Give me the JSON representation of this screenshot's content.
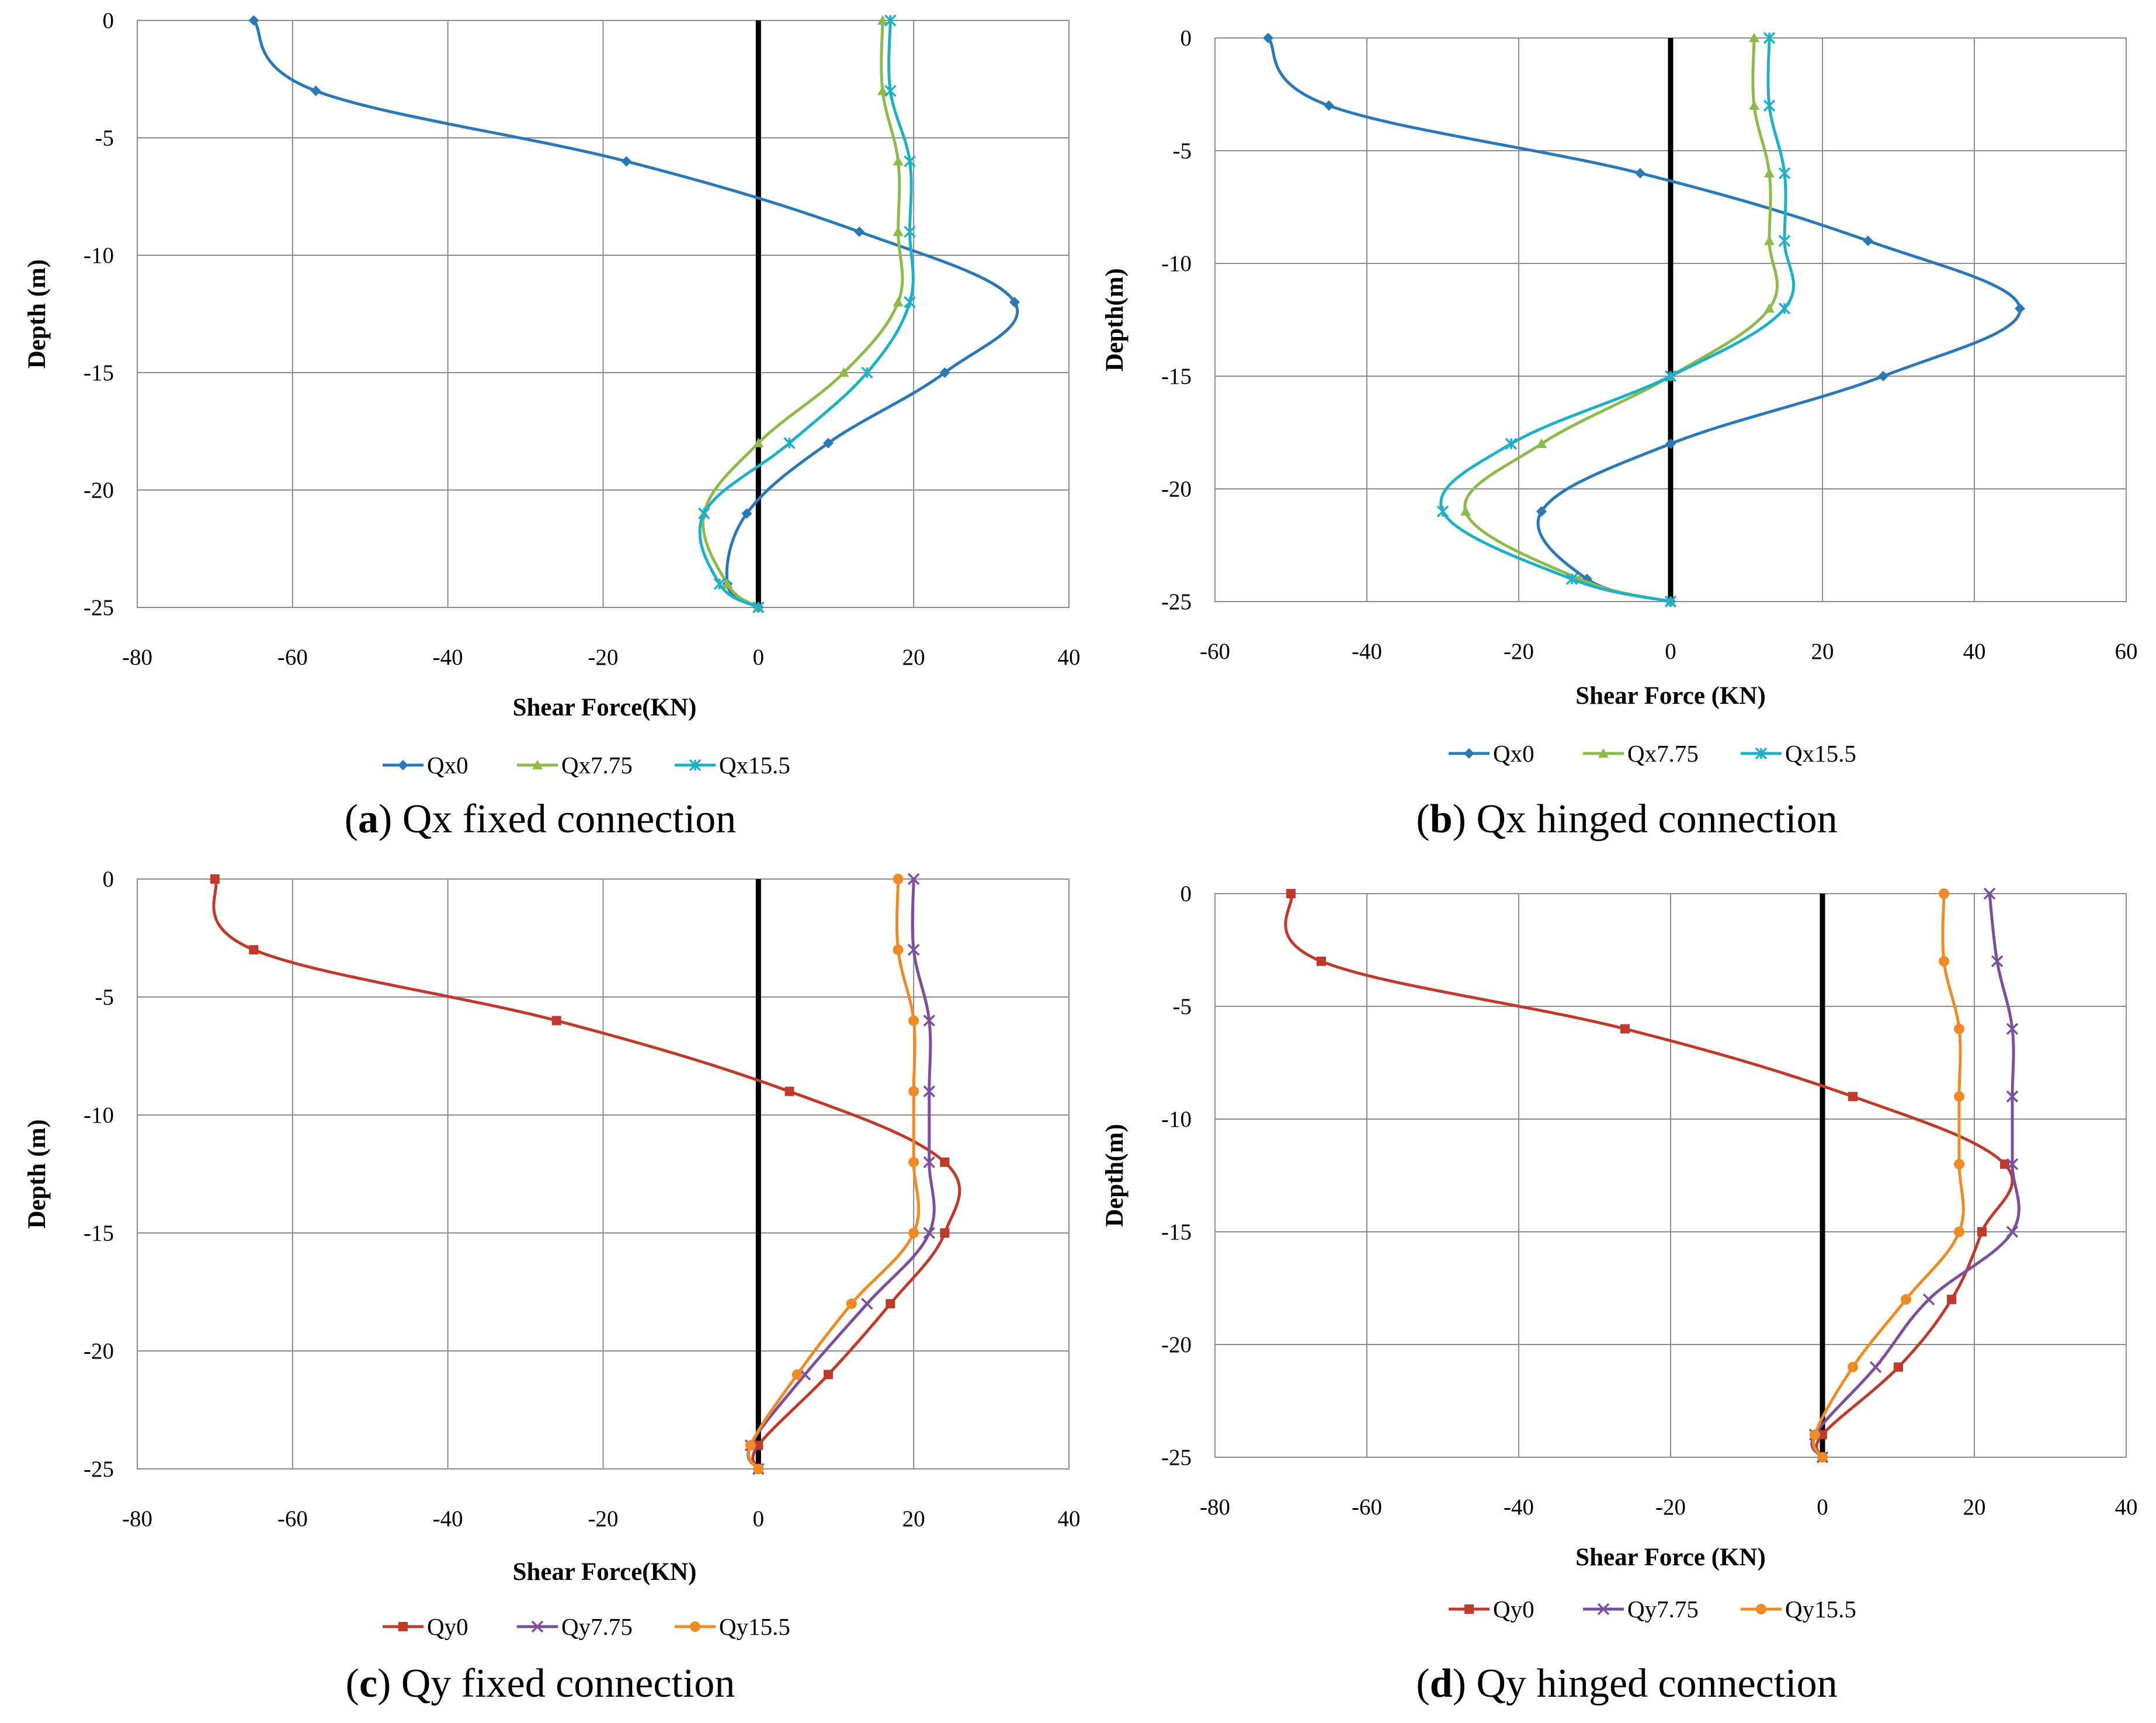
{
  "figure": {
    "depths": [
      0,
      -3,
      -6,
      -9,
      -12,
      -15,
      -18,
      -21,
      -24,
      -25
    ]
  },
  "chart_data": [
    {
      "type": "line",
      "id": "a",
      "caption_letter": "a",
      "caption_text": "Qx fixed connection",
      "xlabel": "Shear Force(KN)",
      "ylabel": "Depth (m)",
      "xlim": [
        -80,
        40
      ],
      "ylim": [
        -25,
        0
      ],
      "xticks": [
        -80,
        -60,
        -40,
        -20,
        0,
        20,
        40
      ],
      "yticks": [
        0,
        -5,
        -10,
        -15,
        -20,
        -25
      ],
      "grid": true,
      "legend": "bottom",
      "series": [
        {
          "name": "Qx0",
          "color": "#2A78B8",
          "marker": "diamond",
          "x": [
            -65,
            -57,
            -17,
            13,
            33,
            24,
            9,
            -1.5,
            -4,
            0
          ],
          "y": [
            0,
            -3,
            -6,
            -9,
            -12,
            -15,
            -18,
            -21,
            -24,
            -25
          ]
        },
        {
          "name": "Qx7.75",
          "color": "#8DBB4A",
          "marker": "triangle",
          "x": [
            16,
            16,
            18,
            18,
            18,
            11,
            0,
            -7,
            -4,
            0
          ],
          "y": [
            0,
            -3,
            -6,
            -9,
            -12,
            -15,
            -18,
            -21,
            -24,
            -25
          ]
        },
        {
          "name": "Qx15.5",
          "color": "#1FB0C9",
          "marker": "asterisk",
          "x": [
            17,
            17,
            19.5,
            19.5,
            19.5,
            14,
            4,
            -7,
            -5,
            0
          ],
          "y": [
            0,
            -3,
            -6,
            -9,
            -12,
            -15,
            -18,
            -21,
            -24,
            -25
          ]
        }
      ]
    },
    {
      "type": "line",
      "id": "b",
      "caption_letter": "b",
      "caption_text": "Qx hinged connection",
      "xlabel": "Shear Force (KN)",
      "ylabel": "Depth(m)",
      "xlim": [
        -60,
        60
      ],
      "ylim": [
        -25,
        0
      ],
      "xticks": [
        -60,
        -40,
        -20,
        0,
        20,
        40,
        60
      ],
      "yticks": [
        0,
        -5,
        -10,
        -15,
        -20,
        -25
      ],
      "grid": true,
      "legend": "bottom",
      "series": [
        {
          "name": "Qx0",
          "color": "#2A78B8",
          "marker": "diamond",
          "x": [
            -53,
            -45,
            -4,
            26,
            46,
            28,
            0,
            -17,
            -11,
            0
          ],
          "y": [
            0,
            -3,
            -6,
            -9,
            -12,
            -15,
            -18,
            -21,
            -24,
            -25
          ]
        },
        {
          "name": "Qx7.75",
          "color": "#8DBB4A",
          "marker": "triangle",
          "x": [
            11,
            11,
            13,
            13,
            13,
            0,
            -17,
            -27,
            -12,
            0
          ],
          "y": [
            0,
            -3,
            -6,
            -9,
            -12,
            -15,
            -18,
            -21,
            -24,
            -25
          ]
        },
        {
          "name": "Qx15.5",
          "color": "#1FB0C9",
          "marker": "asterisk",
          "x": [
            13,
            13,
            15,
            15,
            15,
            0,
            -21,
            -30,
            -13,
            0
          ],
          "y": [
            0,
            -3,
            -6,
            -9,
            -12,
            -15,
            -18,
            -21,
            -24,
            -25
          ]
        }
      ]
    },
    {
      "type": "line",
      "id": "c",
      "caption_letter": "c",
      "caption_text": "Qy fixed connection",
      "xlabel": "Shear Force(KN)",
      "ylabel": "Depth (m)",
      "xlim": [
        -80,
        40
      ],
      "ylim": [
        -25,
        0
      ],
      "xticks": [
        -80,
        -60,
        -40,
        -20,
        0,
        20,
        40
      ],
      "yticks": [
        0,
        -5,
        -10,
        -15,
        -20,
        -25
      ],
      "grid": true,
      "legend": "bottom",
      "series": [
        {
          "name": "Qy0",
          "color": "#C0392B",
          "marker": "square",
          "x": [
            -70,
            -65,
            -26,
            4,
            24,
            24,
            17,
            9,
            0,
            0
          ],
          "y": [
            0,
            -3,
            -6,
            -9,
            -12,
            -15,
            -18,
            -21,
            -24,
            -25
          ]
        },
        {
          "name": "Qy7.75",
          "color": "#7B4F9E",
          "marker": "cross",
          "x": [
            20,
            20,
            22,
            22,
            22,
            22,
            14,
            6,
            -1,
            0
          ],
          "y": [
            0,
            -3,
            -6,
            -9,
            -12,
            -15,
            -18,
            -21,
            -24,
            -25
          ]
        },
        {
          "name": "Qy15.5",
          "color": "#F08A24",
          "marker": "circle",
          "x": [
            18,
            18,
            20,
            20,
            20,
            20,
            12,
            5,
            -1,
            0
          ],
          "y": [
            0,
            -3,
            -6,
            -9,
            -12,
            -15,
            -18,
            -21,
            -24,
            -25
          ]
        }
      ]
    },
    {
      "type": "line",
      "id": "d",
      "caption_letter": "d",
      "caption_text": "Qy hinged connection",
      "xlabel": "Shear Force (KN)",
      "ylabel": "Depth(m)",
      "xlim": [
        -80,
        40
      ],
      "ylim": [
        -25,
        0
      ],
      "xticks": [
        -80,
        -60,
        -40,
        -20,
        0,
        20,
        40
      ],
      "yticks": [
        0,
        -5,
        -10,
        -15,
        -20,
        -25
      ],
      "grid": true,
      "legend": "bottom",
      "series": [
        {
          "name": "Qy0",
          "color": "#C0392B",
          "marker": "square",
          "x": [
            -70,
            -66,
            -26,
            4,
            24,
            21,
            17,
            10,
            0,
            0
          ],
          "y": [
            0,
            -3,
            -6,
            -9,
            -12,
            -15,
            -18,
            -21,
            -24,
            -25
          ]
        },
        {
          "name": "Qy7.75",
          "color": "#7B4F9E",
          "marker": "cross",
          "x": [
            22,
            23,
            25,
            25,
            25,
            25,
            14,
            7,
            -1,
            0
          ],
          "y": [
            0,
            -3,
            -6,
            -9,
            -12,
            -15,
            -18,
            -21,
            -24,
            -25
          ]
        },
        {
          "name": "Qy15.5",
          "color": "#F08A24",
          "marker": "circle",
          "x": [
            16,
            16,
            18,
            18,
            18,
            18,
            11,
            4,
            -1,
            0
          ],
          "y": [
            0,
            -3,
            -6,
            -9,
            -12,
            -15,
            -18,
            -21,
            -24,
            -25
          ]
        }
      ]
    }
  ]
}
